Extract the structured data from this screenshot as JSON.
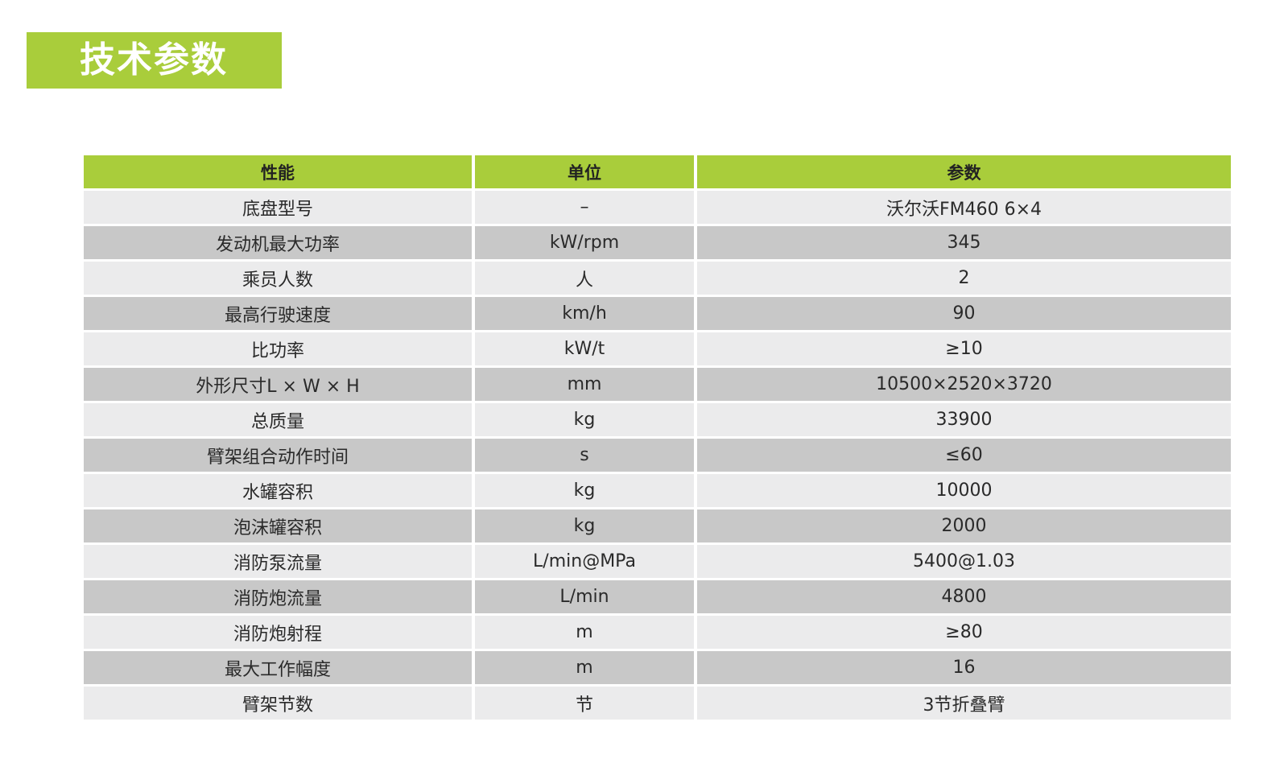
{
  "title": "技术参数",
  "colors": {
    "accent": "#a9cd3b",
    "row_light": "#ebebec",
    "row_dark": "#c8c8c8"
  },
  "table": {
    "headers": [
      "性能",
      "单位",
      "参数"
    ],
    "rows": [
      [
        "底盘型号",
        "–",
        "沃尔沃FM460 6×4"
      ],
      [
        "发动机最大功率",
        "kW/rpm",
        "345"
      ],
      [
        "乘员人数",
        "人",
        "2"
      ],
      [
        "最高行驶速度",
        "km/h",
        "90"
      ],
      [
        "比功率",
        "kW/t",
        "≥10"
      ],
      [
        "外形尺寸L × W × H",
        "mm",
        "10500×2520×3720"
      ],
      [
        "总质量",
        "kg",
        "33900"
      ],
      [
        "臂架组合动作时间",
        "s",
        "≤60"
      ],
      [
        "水罐容积",
        "kg",
        "10000"
      ],
      [
        "泡沫罐容积",
        "kg",
        "2000"
      ],
      [
        "消防泵流量",
        "L/min@MPa",
        "5400@1.03"
      ],
      [
        "消防炮流量",
        "L/min",
        "4800"
      ],
      [
        "消防炮射程",
        "m",
        "≥80"
      ],
      [
        "最大工作幅度",
        "m",
        "16"
      ],
      [
        "臂架节数",
        "节",
        "3节折叠臂"
      ]
    ]
  }
}
